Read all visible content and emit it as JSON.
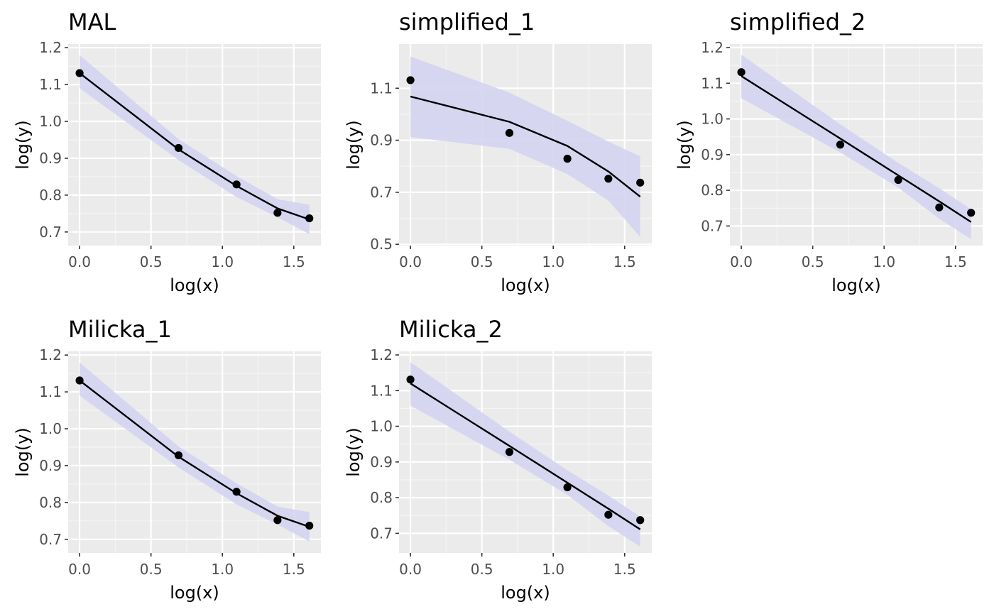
{
  "colors": {
    "panel_bg": "#EBEBEB",
    "grid_major": "#FFFFFF",
    "grid_minor": "#F5F5F5",
    "ribbon": "#D4D4F2",
    "line": "#000000",
    "point": "#000000"
  },
  "chart_data": [
    {
      "type": "line",
      "title": "MAL",
      "xlabel": "log(x)",
      "ylabel": "log(y)",
      "xlim": [
        -0.08,
        1.69
      ],
      "ylim": [
        0.663,
        1.21
      ],
      "xticks": [
        0.0,
        0.5,
        1.0,
        1.5
      ],
      "xtick_labels": [
        "0.0",
        "0.5",
        "1.0",
        "1.5"
      ],
      "yticks": [
        0.7,
        0.8,
        0.9,
        1.0,
        1.1,
        1.2
      ],
      "ytick_labels": [
        "0.7",
        "0.8",
        "0.9",
        "1.0",
        "1.1",
        "1.2"
      ],
      "grid": true,
      "points": {
        "x": [
          0,
          0.693,
          1.099,
          1.386,
          1.609
        ],
        "y": [
          1.131,
          0.928,
          0.829,
          0.752,
          0.737
        ]
      },
      "fit": {
        "x": [
          0,
          0.693,
          1.099,
          1.386,
          1.609
        ],
        "y": [
          1.131,
          0.924,
          0.825,
          0.764,
          0.734
        ]
      },
      "ribbon": {
        "x": [
          0,
          0.693,
          1.099,
          1.386,
          1.609
        ],
        "lower": [
          1.09,
          0.895,
          0.795,
          0.74,
          0.694
        ],
        "upper": [
          1.18,
          0.952,
          0.852,
          0.789,
          0.774
        ]
      }
    },
    {
      "type": "line",
      "title": "simplified_1",
      "xlabel": "log(x)",
      "ylabel": "log(y)",
      "xlim": [
        -0.08,
        1.69
      ],
      "ylim": [
        0.495,
        1.27
      ],
      "xticks": [
        0.0,
        0.5,
        1.0,
        1.5
      ],
      "xtick_labels": [
        "0.0",
        "0.5",
        "1.0",
        "1.5"
      ],
      "yticks": [
        0.5,
        0.7,
        0.9,
        1.1
      ],
      "ytick_labels": [
        "0.5",
        "0.7",
        "0.9",
        "1.1"
      ],
      "grid": true,
      "points": {
        "x": [
          0,
          0.693,
          1.099,
          1.386,
          1.609
        ],
        "y": [
          1.131,
          0.928,
          0.829,
          0.752,
          0.737
        ]
      },
      "fit": {
        "x": [
          0,
          0.693,
          1.099,
          1.386,
          1.609
        ],
        "y": [
          1.068,
          0.971,
          0.878,
          0.78,
          0.683
        ]
      },
      "ribbon": {
        "x": [
          0,
          0.693,
          1.099,
          1.386,
          1.609
        ],
        "lower": [
          0.912,
          0.867,
          0.77,
          0.668,
          0.528
        ],
        "upper": [
          1.222,
          1.083,
          0.975,
          0.895,
          0.838
        ]
      }
    },
    {
      "type": "line",
      "title": "simplified_2",
      "xlabel": "log(x)",
      "ylabel": "log(y)",
      "xlim": [
        -0.08,
        1.69
      ],
      "ylim": [
        0.645,
        1.21
      ],
      "xticks": [
        0.0,
        0.5,
        1.0,
        1.5
      ],
      "xtick_labels": [
        "0.0",
        "0.5",
        "1.0",
        "1.5"
      ],
      "yticks": [
        0.7,
        0.8,
        0.9,
        1.0,
        1.1,
        1.2
      ],
      "ytick_labels": [
        "0.7",
        "0.8",
        "0.9",
        "1.0",
        "1.1",
        "1.2"
      ],
      "grid": true,
      "points": {
        "x": [
          0,
          0.693,
          1.099,
          1.386,
          1.609
        ],
        "y": [
          1.131,
          0.928,
          0.829,
          0.752,
          0.737
        ]
      },
      "fit": {
        "x": [
          0,
          0.693,
          1.099,
          1.386,
          1.609
        ],
        "y": [
          1.12,
          0.945,
          0.842,
          0.769,
          0.711
        ]
      },
      "ribbon": {
        "x": [
          0,
          0.693,
          1.099,
          1.386,
          1.609
        ],
        "lower": [
          1.058,
          0.906,
          0.808,
          0.72,
          0.663
        ],
        "upper": [
          1.18,
          0.985,
          0.877,
          0.806,
          0.747
        ]
      }
    },
    {
      "type": "line",
      "title": "Milicka_1",
      "xlabel": "log(x)",
      "ylabel": "log(y)",
      "xlim": [
        -0.08,
        1.69
      ],
      "ylim": [
        0.663,
        1.21
      ],
      "xticks": [
        0.0,
        0.5,
        1.0,
        1.5
      ],
      "xtick_labels": [
        "0.0",
        "0.5",
        "1.0",
        "1.5"
      ],
      "yticks": [
        0.7,
        0.8,
        0.9,
        1.0,
        1.1,
        1.2
      ],
      "ytick_labels": [
        "0.7",
        "0.8",
        "0.9",
        "1.0",
        "1.1",
        "1.2"
      ],
      "grid": true,
      "points": {
        "x": [
          0,
          0.693,
          1.099,
          1.386,
          1.609
        ],
        "y": [
          1.131,
          0.928,
          0.829,
          0.752,
          0.737
        ]
      },
      "fit": {
        "x": [
          0,
          0.693,
          1.099,
          1.386,
          1.609
        ],
        "y": [
          1.131,
          0.924,
          0.825,
          0.764,
          0.734
        ]
      },
      "ribbon": {
        "x": [
          0,
          0.693,
          1.099,
          1.386,
          1.609
        ],
        "lower": [
          1.09,
          0.895,
          0.795,
          0.74,
          0.694
        ],
        "upper": [
          1.18,
          0.952,
          0.852,
          0.789,
          0.774
        ]
      }
    },
    {
      "type": "line",
      "title": "Milicka_2",
      "xlabel": "log(x)",
      "ylabel": "log(y)",
      "xlim": [
        -0.08,
        1.69
      ],
      "ylim": [
        0.645,
        1.21
      ],
      "xticks": [
        0.0,
        0.5,
        1.0,
        1.5
      ],
      "xtick_labels": [
        "0.0",
        "0.5",
        "1.0",
        "1.5"
      ],
      "yticks": [
        0.7,
        0.8,
        0.9,
        1.0,
        1.1,
        1.2
      ],
      "ytick_labels": [
        "0.7",
        "0.8",
        "0.9",
        "1.0",
        "1.1",
        "1.2"
      ],
      "grid": true,
      "points": {
        "x": [
          0,
          0.693,
          1.099,
          1.386,
          1.609
        ],
        "y": [
          1.131,
          0.928,
          0.829,
          0.752,
          0.737
        ]
      },
      "fit": {
        "x": [
          0,
          0.693,
          1.099,
          1.386,
          1.609
        ],
        "y": [
          1.12,
          0.945,
          0.842,
          0.769,
          0.711
        ]
      },
      "ribbon": {
        "x": [
          0,
          0.693,
          1.099,
          1.386,
          1.609
        ],
        "lower": [
          1.058,
          0.906,
          0.808,
          0.72,
          0.663
        ],
        "upper": [
          1.18,
          0.985,
          0.877,
          0.806,
          0.747
        ]
      }
    }
  ]
}
